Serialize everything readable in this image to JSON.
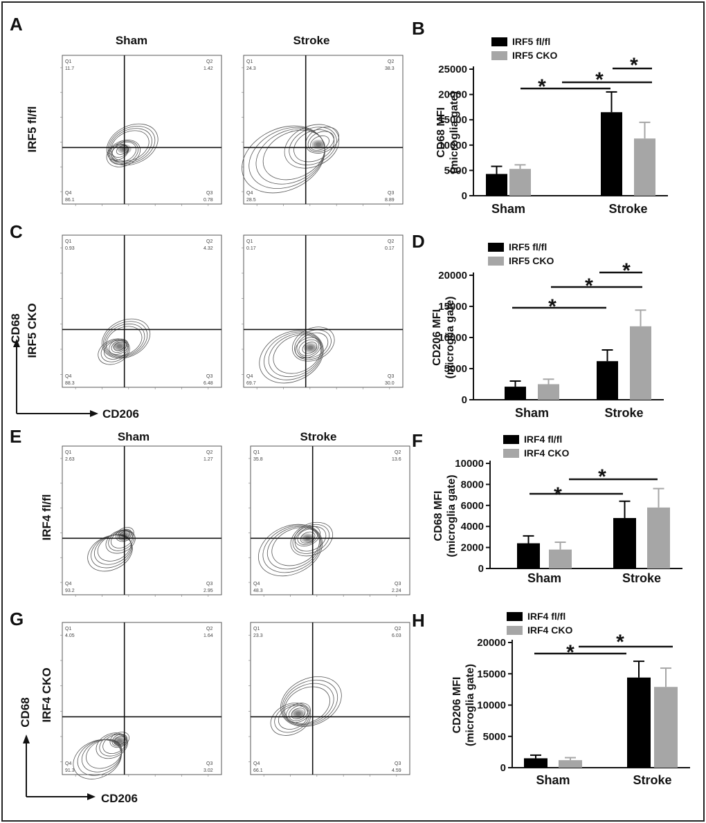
{
  "colors": {
    "dark": "#000000",
    "light": "#a6a6a6",
    "frame": "#222222"
  },
  "panel_labels": {
    "A": "A",
    "B": "B",
    "C": "C",
    "D": "D",
    "E": "E",
    "F": "F",
    "G": "G",
    "H": "H"
  },
  "flow": {
    "top_headers": {
      "sham": "Sham",
      "stroke": "Stroke"
    },
    "bottom_headers": {
      "sham": "Sham",
      "stroke": "Stroke"
    },
    "row_labels": {
      "irf5_flfl": "IRF5 fl/fl",
      "irf5_cko": "IRF5 CKO",
      "irf4_flfl": "IRF4 fl/fl",
      "irf4_cko": "IRF4 CKO"
    },
    "axis_labels": {
      "top_y": "CD68",
      "top_x": "CD206",
      "bottom_y": "CD68",
      "bottom_x": "CD206"
    },
    "quadrant_names": [
      "Q1",
      "Q2",
      "Q3",
      "Q4"
    ],
    "plots": [
      {
        "q1": "11.7",
        "q2": "1.42",
        "q3": "0.78",
        "q4": "86.1"
      },
      {
        "q1": "24.3",
        "q2": "38.3",
        "q3": "8.89",
        "q4": "28.5"
      },
      {
        "q1": "0.93",
        "q2": "4.32",
        "q3": "6.48",
        "q4": "88.3"
      },
      {
        "q1": "0.17",
        "q2": "0.17",
        "q3": "30.0",
        "q4": "69.7"
      },
      {
        "q1": "2.63",
        "q2": "1.27",
        "q3": "2.95",
        "q4": "93.2"
      },
      {
        "q1": "35.8",
        "q2": "13.6",
        "q3": "2.24",
        "q4": "48.3"
      },
      {
        "q1": "4.05",
        "q2": "1.64",
        "q3": "3.02",
        "q4": "91.3"
      },
      {
        "q1": "23.3",
        "q2": "6.03",
        "q3": "4.59",
        "q4": "66.1"
      }
    ]
  },
  "chart_data": [
    {
      "panel": "B",
      "type": "bar",
      "ylabel": "CD68 MFI",
      "ylabel2": "(microglia gate)",
      "categories": [
        "Sham",
        "Stroke"
      ],
      "ylim": [
        0,
        25000
      ],
      "yticks": [
        0,
        5000,
        10000,
        15000,
        20000,
        25000
      ],
      "series": [
        {
          "name": "IRF5 fl/fl",
          "values": [
            4300,
            16500
          ],
          "errors": [
            1500,
            4000
          ]
        },
        {
          "name": "IRF5 CKO",
          "values": [
            5300,
            11300
          ],
          "errors": [
            800,
            3200
          ]
        }
      ],
      "annotations": "*"
    },
    {
      "panel": "D",
      "type": "bar",
      "ylabel": "CD206 MFI",
      "ylabel2": "(microglia gate)",
      "categories": [
        "Sham",
        "Stroke"
      ],
      "ylim": [
        0,
        20000
      ],
      "yticks": [
        0,
        5000,
        10000,
        15000,
        20000
      ],
      "series": [
        {
          "name": "IRF5 fl/fl",
          "values": [
            2100,
            6200
          ],
          "errors": [
            900,
            1800
          ]
        },
        {
          "name": "IRF5 CKO",
          "values": [
            2500,
            11800
          ],
          "errors": [
            800,
            2600
          ]
        }
      ],
      "annotations": "*"
    },
    {
      "panel": "F",
      "type": "bar",
      "ylabel": "CD68 MFI",
      "ylabel2": "(microglia gate)",
      "categories": [
        "Sham",
        "Stroke"
      ],
      "ylim": [
        0,
        10000
      ],
      "yticks": [
        0,
        2000,
        4000,
        6000,
        8000,
        10000
      ],
      "series": [
        {
          "name": "IRF4 fl/fl",
          "values": [
            2400,
            4800
          ],
          "errors": [
            700,
            1600
          ]
        },
        {
          "name": "IRF4 CKO",
          "values": [
            1800,
            5800
          ],
          "errors": [
            700,
            1800
          ]
        }
      ],
      "annotations": "*"
    },
    {
      "panel": "H",
      "type": "bar",
      "ylabel": "CD206 MFI",
      "ylabel2": "(microglia gate)",
      "categories": [
        "Sham",
        "Stroke"
      ],
      "ylim": [
        0,
        20000
      ],
      "yticks": [
        0,
        5000,
        10000,
        15000,
        20000
      ],
      "series": [
        {
          "name": "IRF4 fl/fl",
          "values": [
            1500,
            14400
          ],
          "errors": [
            500,
            2600
          ]
        },
        {
          "name": "IRF4 CKO",
          "values": [
            1200,
            12900
          ],
          "errors": [
            400,
            3000
          ]
        }
      ],
      "annotations": "*"
    }
  ]
}
